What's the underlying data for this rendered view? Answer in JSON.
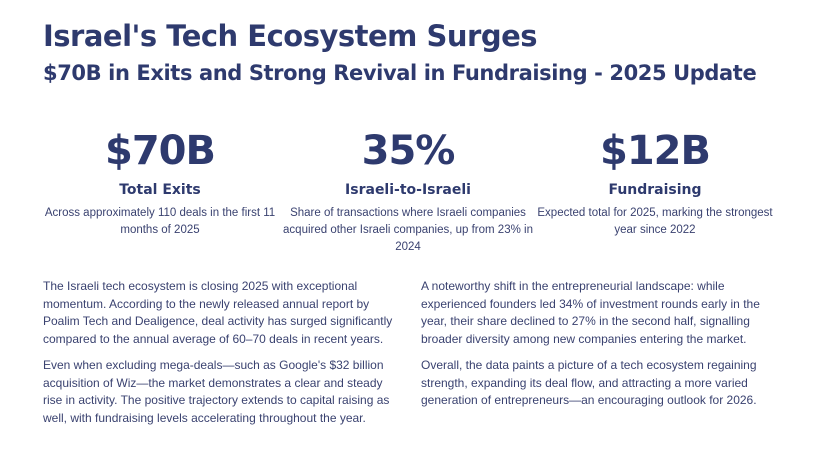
{
  "header": {
    "title": "Israel's Tech Ecosystem Surges",
    "subtitle": "$70B in Exits and Strong Revival in Fundraising - 2025 Update"
  },
  "stats": [
    {
      "value": "$70B",
      "label": "Total Exits",
      "description": "Across approximately 110 deals in the first 11 months of 2025"
    },
    {
      "value": "35%",
      "label": "Israeli-to-Israeli",
      "description": "Share of transactions where Israeli companies acquired other Israeli companies, up from 23% in 2024"
    },
    {
      "value": "$12B",
      "label": "Fundraising",
      "description": "Expected total for 2025, marking the strongest year since 2022"
    }
  ],
  "body": {
    "left": [
      "The Israeli tech ecosystem is closing 2025 with exceptional momentum. According to the newly released annual report by Poalim Tech and Dealigence, deal activity has surged significantly compared to the annual average of 60–70 deals in recent years.",
      "Even when excluding mega-deals—such as Google's $32 billion acquisition of Wiz—the market demonstrates a clear and steady rise in activity. The positive trajectory extends to capital raising as well, with fundraising levels accelerating throughout the year."
    ],
    "right": [
      "A noteworthy shift in the entrepreneurial landscape: while experienced founders led 34% of investment rounds early in the year, their share declined to 27% in the second half, signalling broader diversity among new companies entering the market.",
      "Overall, the data paints a picture of a tech ecosystem regaining strength, expanding its deal flow, and attracting a more varied generation of entrepreneurs—an encouraging outlook for 2026."
    ]
  },
  "colors": {
    "primary": "#2e3a6e",
    "text": "#3a4270"
  }
}
